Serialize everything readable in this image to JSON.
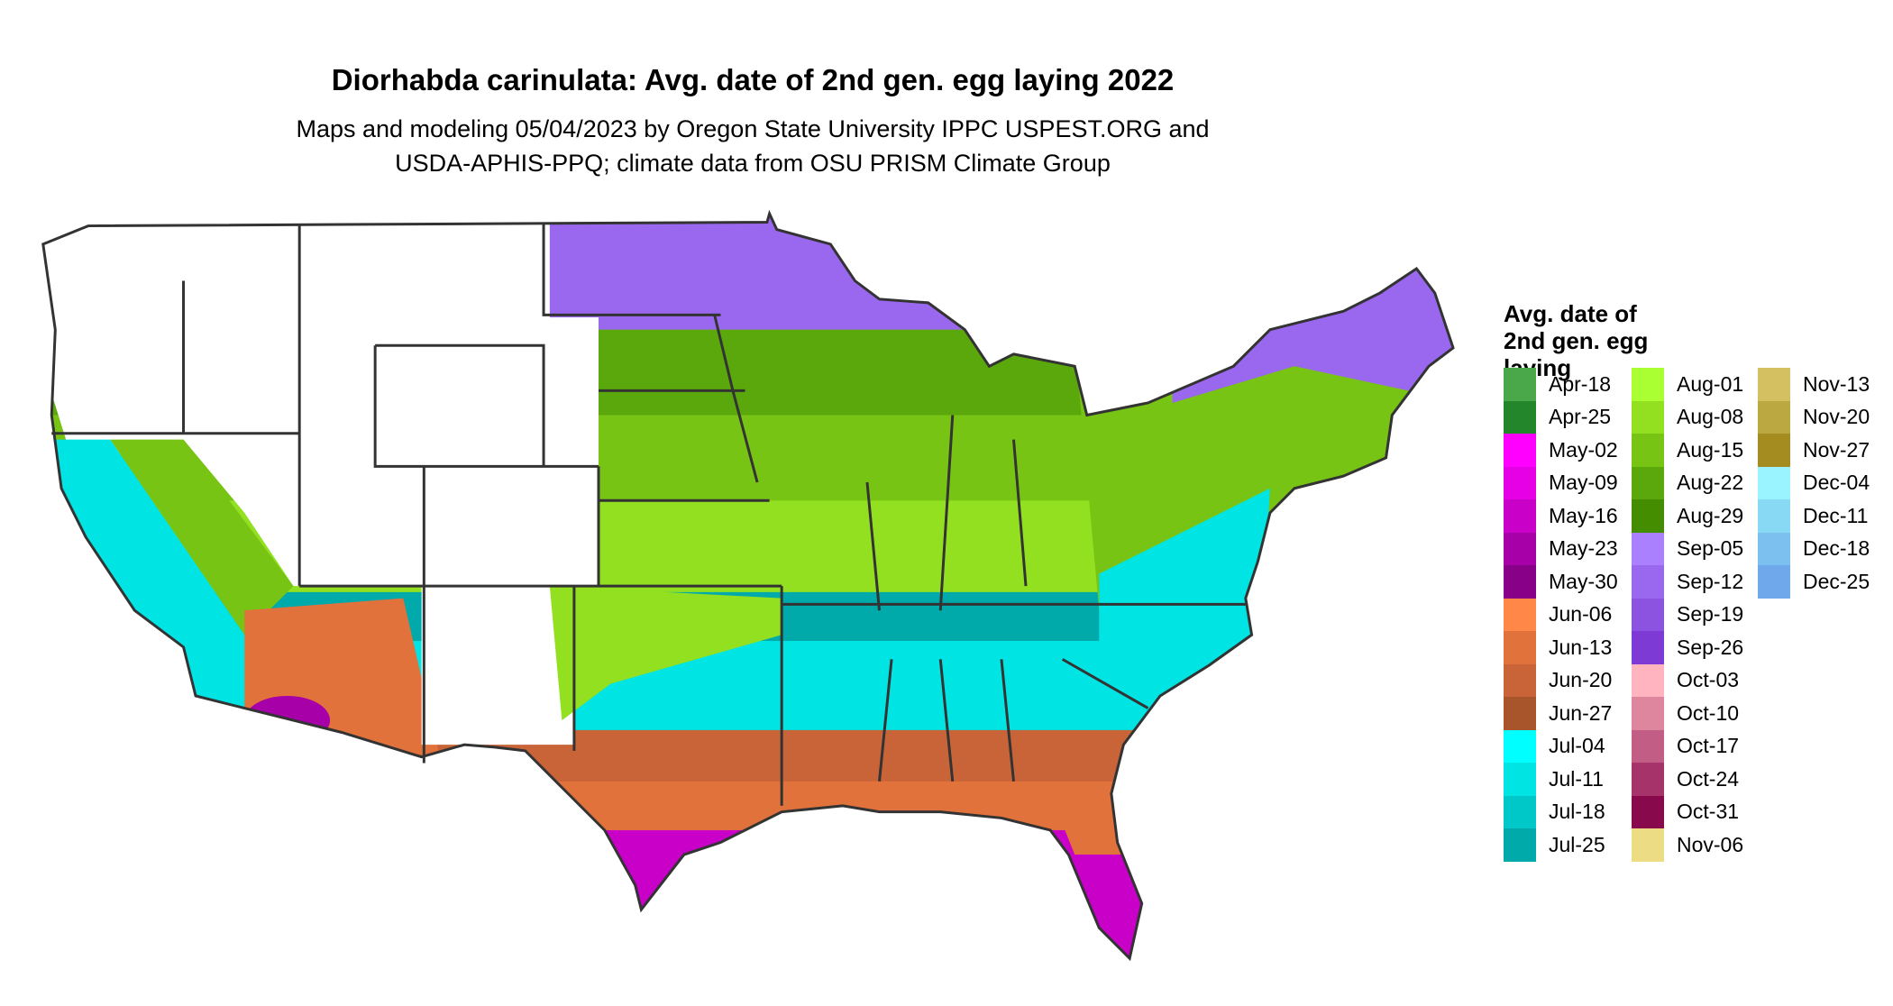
{
  "title": "Diorhabda carinulata: Avg. date of 2nd gen. egg laying 2022",
  "subtitle_line1": "Maps and modeling 05/04/2023 by Oregon State University IPPC USPEST.ORG and",
  "subtitle_line2": "USDA-APHIS-PPQ; climate data from OSU PRISM Climate Group",
  "legend": {
    "title_lines": [
      "Avg. date of",
      "2nd gen. egg",
      "laying"
    ],
    "columns": [
      [
        {
          "label": "Apr-18",
          "color": "#4aa84a"
        },
        {
          "label": "Apr-25",
          "color": "#23862a"
        },
        {
          "label": "May-02",
          "color": "#ff00ff"
        },
        {
          "label": "May-09",
          "color": "#e600e6"
        },
        {
          "label": "May-16",
          "color": "#c800c8"
        },
        {
          "label": "May-23",
          "color": "#a800a8"
        },
        {
          "label": "May-30",
          "color": "#880088"
        },
        {
          "label": "Jun-06",
          "color": "#ff8848"
        },
        {
          "label": "Jun-13",
          "color": "#e2723c"
        },
        {
          "label": "Jun-20",
          "color": "#c86438"
        },
        {
          "label": "Jun-27",
          "color": "#a8552c"
        },
        {
          "label": "Jul-04",
          "color": "#00ffff"
        },
        {
          "label": "Jul-11",
          "color": "#00e4e4"
        },
        {
          "label": "Jul-18",
          "color": "#00c8c8"
        },
        {
          "label": "Jul-25",
          "color": "#00aaaa"
        }
      ],
      [
        {
          "label": "Aug-01",
          "color": "#aaff33"
        },
        {
          "label": "Aug-08",
          "color": "#92e020"
        },
        {
          "label": "Aug-15",
          "color": "#78c414"
        },
        {
          "label": "Aug-22",
          "color": "#5aa80c"
        },
        {
          "label": "Aug-29",
          "color": "#448c00"
        },
        {
          "label": "Sep-05",
          "color": "#aa80ff"
        },
        {
          "label": "Sep-12",
          "color": "#9a68ee"
        },
        {
          "label": "Sep-19",
          "color": "#8c52e0"
        },
        {
          "label": "Sep-26",
          "color": "#7e3ad4"
        },
        {
          "label": "Oct-03",
          "color": "#ffb4c0"
        },
        {
          "label": "Oct-10",
          "color": "#de869e"
        },
        {
          "label": "Oct-17",
          "color": "#c25e86"
        },
        {
          "label": "Oct-24",
          "color": "#a6346a"
        },
        {
          "label": "Oct-31",
          "color": "#880a4c"
        },
        {
          "label": "Nov-06",
          "color": "#ecdc84"
        }
      ],
      [
        {
          "label": "Nov-13",
          "color": "#d4c060"
        },
        {
          "label": "Nov-20",
          "color": "#bca840"
        },
        {
          "label": "Nov-27",
          "color": "#a48c20"
        },
        {
          "label": "Dec-04",
          "color": "#99f4ff"
        },
        {
          "label": "Dec-11",
          "color": "#88daf4"
        },
        {
          "label": "Dec-18",
          "color": "#7cc0f0"
        },
        {
          "label": "Dec-25",
          "color": "#70a8ec"
        }
      ]
    ]
  }
}
